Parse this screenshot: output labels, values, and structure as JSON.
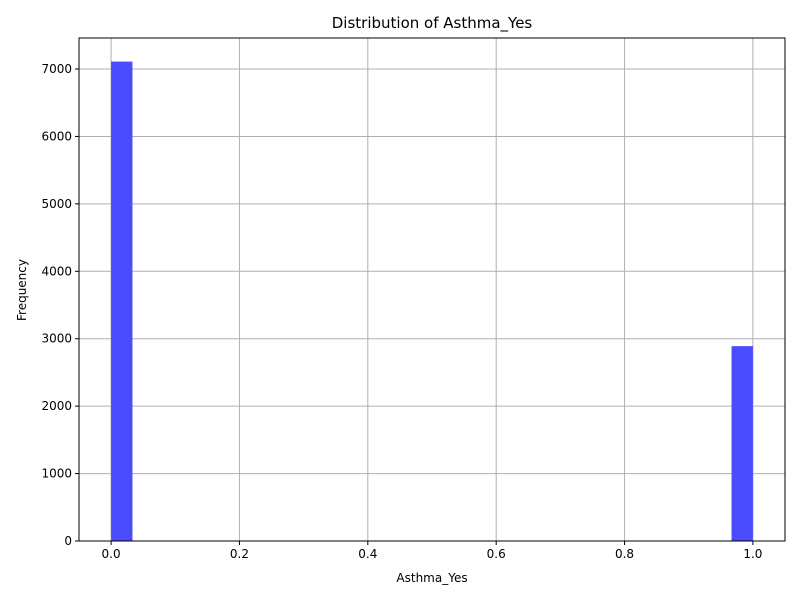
{
  "chart_data": {
    "type": "bar",
    "title": "Distribution of Asthma_Yes",
    "xlabel": "Asthma_Yes",
    "ylabel": "Frequency",
    "xlim": [
      -0.05,
      1.05
    ],
    "ylim": [
      0,
      7460
    ],
    "xticks": [
      "0.0",
      "0.2",
      "0.4",
      "0.6",
      "0.8",
      "1.0"
    ],
    "yticks": [
      "0",
      "1000",
      "2000",
      "3000",
      "4000",
      "5000",
      "6000",
      "7000"
    ],
    "grid": true,
    "bin_width": 0.0333,
    "bars": [
      {
        "x_start": 0.0,
        "x_end": 0.0333,
        "value": 7110
      },
      {
        "x_start": 0.9667,
        "x_end": 1.0,
        "value": 2890
      }
    ],
    "colors": {
      "bar": "#4c4cff",
      "grid": "#b0b0b0",
      "axis": "#000000"
    }
  }
}
